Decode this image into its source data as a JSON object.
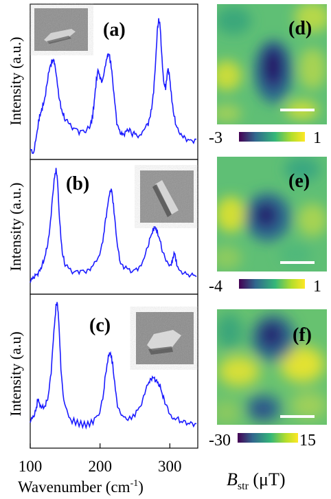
{
  "chart_data": [
    {
      "type": "line",
      "panel": "(a)",
      "ylabel": "Intensity (a.u.)",
      "xlim": [
        100,
        340
      ],
      "series": [
        {
          "points": [
            [
              100,
              0.08
            ],
            [
              104,
              0.03
            ],
            [
              108,
              0.12
            ],
            [
              112,
              0.25
            ],
            [
              115,
              0.3
            ],
            [
              118,
              0.34
            ],
            [
              122,
              0.42
            ],
            [
              126,
              0.55
            ],
            [
              130,
              0.62
            ],
            [
              133,
              0.64
            ],
            [
              135,
              0.62
            ],
            [
              138,
              0.52
            ],
            [
              142,
              0.38
            ],
            [
              146,
              0.3
            ],
            [
              150,
              0.26
            ],
            [
              156,
              0.22
            ],
            [
              162,
              0.2
            ],
            [
              170,
              0.18
            ],
            [
              178,
              0.18
            ],
            [
              184,
              0.2
            ],
            [
              188,
              0.24
            ],
            [
              191,
              0.34
            ],
            [
              194,
              0.48
            ],
            [
              197,
              0.58
            ],
            [
              200,
              0.53
            ],
            [
              203,
              0.5
            ],
            [
              206,
              0.56
            ],
            [
              210,
              0.66
            ],
            [
              213,
              0.68
            ],
            [
              216,
              0.6
            ],
            [
              220,
              0.42
            ],
            [
              224,
              0.24
            ],
            [
              228,
              0.18
            ],
            [
              232,
              0.16
            ],
            [
              236,
              0.17
            ],
            [
              240,
              0.2
            ],
            [
              245,
              0.17
            ],
            [
              250,
              0.16
            ],
            [
              256,
              0.16
            ],
            [
              262,
              0.18
            ],
            [
              268,
              0.22
            ],
            [
              272,
              0.28
            ],
            [
              276,
              0.4
            ],
            [
              279,
              0.58
            ],
            [
              282,
              0.82
            ],
            [
              284,
              0.91
            ],
            [
              286,
              0.86
            ],
            [
              288,
              0.7
            ],
            [
              291,
              0.5
            ],
            [
              294,
              0.46
            ],
            [
              297,
              0.58
            ],
            [
              299,
              0.56
            ],
            [
              302,
              0.42
            ],
            [
              306,
              0.28
            ],
            [
              310,
              0.2
            ],
            [
              316,
              0.17
            ],
            [
              322,
              0.14
            ],
            [
              330,
              0.12
            ],
            [
              338,
              0.13
            ]
          ]
        }
      ]
    },
    {
      "type": "line",
      "panel": "(b)",
      "ylabel": "Intensity (a.u.)",
      "xlim": [
        100,
        340
      ],
      "series": [
        {
          "points": [
            [
              100,
              0.1
            ],
            [
              104,
              0.12
            ],
            [
              108,
              0.14
            ],
            [
              112,
              0.16
            ],
            [
              116,
              0.2
            ],
            [
              120,
              0.26
            ],
            [
              124,
              0.34
            ],
            [
              128,
              0.48
            ],
            [
              132,
              0.72
            ],
            [
              135,
              0.88
            ],
            [
              137,
              0.92
            ],
            [
              139,
              0.85
            ],
            [
              142,
              0.55
            ],
            [
              146,
              0.3
            ],
            [
              150,
              0.22
            ],
            [
              156,
              0.18
            ],
            [
              162,
              0.16
            ],
            [
              170,
              0.17
            ],
            [
              178,
              0.17
            ],
            [
              186,
              0.18
            ],
            [
              192,
              0.22
            ],
            [
              198,
              0.28
            ],
            [
              204,
              0.4
            ],
            [
              208,
              0.55
            ],
            [
              212,
              0.7
            ],
            [
              215,
              0.78
            ],
            [
              217,
              0.76
            ],
            [
              220,
              0.62
            ],
            [
              224,
              0.4
            ],
            [
              228,
              0.26
            ],
            [
              234,
              0.2
            ],
            [
              240,
              0.18
            ],
            [
              248,
              0.17
            ],
            [
              256,
              0.2
            ],
            [
              262,
              0.26
            ],
            [
              268,
              0.34
            ],
            [
              272,
              0.42
            ],
            [
              276,
              0.48
            ],
            [
              279,
              0.5
            ],
            [
              282,
              0.46
            ],
            [
              286,
              0.4
            ],
            [
              290,
              0.3
            ],
            [
              296,
              0.24
            ],
            [
              302,
              0.22
            ],
            [
              305,
              0.28
            ],
            [
              307,
              0.3
            ],
            [
              310,
              0.22
            ],
            [
              316,
              0.17
            ],
            [
              324,
              0.15
            ],
            [
              332,
              0.14
            ],
            [
              338,
              0.13
            ]
          ]
        }
      ]
    },
    {
      "type": "line",
      "panel": "(c)",
      "ylabel": "Intensity (a.u)",
      "xlabel": "Wavenumber (cm⁻¹)",
      "xticks": [
        100,
        200,
        300
      ],
      "xlim": [
        100,
        340
      ],
      "series": [
        {
          "points": [
            [
              100,
              0.18
            ],
            [
              104,
              0.2
            ],
            [
              108,
              0.24
            ],
            [
              111,
              0.32
            ],
            [
              114,
              0.28
            ],
            [
              118,
              0.26
            ],
            [
              122,
              0.28
            ],
            [
              126,
              0.34
            ],
            [
              130,
              0.5
            ],
            [
              134,
              0.76
            ],
            [
              137,
              0.92
            ],
            [
              139,
              0.94
            ],
            [
              141,
              0.82
            ],
            [
              144,
              0.52
            ],
            [
              148,
              0.3
            ],
            [
              154,
              0.22
            ],
            [
              160,
              0.18
            ],
            [
              170,
              0.16
            ],
            [
              180,
              0.15
            ],
            [
              190,
              0.17
            ],
            [
              198,
              0.22
            ],
            [
              204,
              0.32
            ],
            [
              208,
              0.48
            ],
            [
              212,
              0.6
            ],
            [
              215,
              0.62
            ],
            [
              218,
              0.55
            ],
            [
              222,
              0.38
            ],
            [
              226,
              0.25
            ],
            [
              232,
              0.2
            ],
            [
              240,
              0.19
            ],
            [
              250,
              0.21
            ],
            [
              258,
              0.28
            ],
            [
              264,
              0.36
            ],
            [
              270,
              0.42
            ],
            [
              274,
              0.46
            ],
            [
              278,
              0.45
            ],
            [
              282,
              0.43
            ],
            [
              286,
              0.4
            ],
            [
              290,
              0.34
            ],
            [
              294,
              0.28
            ],
            [
              300,
              0.22
            ],
            [
              306,
              0.2
            ],
            [
              314,
              0.18
            ],
            [
              322,
              0.17
            ],
            [
              330,
              0.16
            ],
            [
              338,
              0.16
            ]
          ]
        }
      ]
    },
    {
      "type": "heatmap",
      "panel": "(d)",
      "colorbar": {
        "min": "-3",
        "max": "1"
      },
      "colormap": [
        "#440154",
        "#31688e",
        "#35b779",
        "#b5de2b",
        "#fde725"
      ]
    },
    {
      "type": "heatmap",
      "panel": "(e)",
      "colorbar": {
        "min": "-4",
        "max": "1"
      },
      "colormap": [
        "#440154",
        "#31688e",
        "#35b779",
        "#b5de2b",
        "#fde725"
      ]
    },
    {
      "type": "heatmap",
      "panel": "(f)",
      "colorbar": {
        "min": "-30",
        "max": "15"
      },
      "colormap": [
        "#440154",
        "#31688e",
        "#35b779",
        "#b5de2b",
        "#fde725"
      ],
      "colorbar_label": "B_str (μT)"
    }
  ],
  "labels": {
    "a": "(a)",
    "b": "(b)",
    "c": "(c)",
    "d": "(d)",
    "e": "(e)",
    "f": "(f)",
    "ylabel_ab": "Intensity (a.u.)",
    "ylabel_c": "Intensity (a.u)",
    "xlabel": "Wavenumber (cm",
    "xlabel_sup": "-1",
    "xlabel_end": ")",
    "xtick_100": "100",
    "xtick_200": "200",
    "xtick_300": "300",
    "cb_d_min": "-3",
    "cb_d_max": "1",
    "cb_e_min": "-4",
    "cb_e_max": "1",
    "cb_f_min": "-30",
    "cb_f_max": "15",
    "bstr_B": "B",
    "bstr_sub": "str",
    "bstr_unit": " (μT)"
  },
  "colors": {
    "spectrum": "#1a1aff",
    "scalebar": "#ffffff"
  }
}
